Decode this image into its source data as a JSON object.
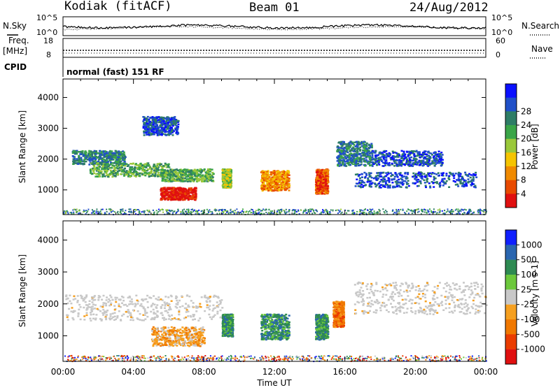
{
  "header": {
    "station": "Kodiak (fitACF)",
    "beam": "Beam 01",
    "date": "24/Aug/2012"
  },
  "status_panels": {
    "nsky_label": "N.Sky",
    "nsearch_label": "N.Search",
    "noise_ticks": [
      "10^5",
      "10^0"
    ],
    "freq_label_top": "Freq.",
    "freq_label_unit": "[MHz]",
    "freq_ticks": [
      "18",
      "8"
    ],
    "nave_label": "Nave",
    "nave_ticks": [
      "60",
      "0"
    ],
    "cpid_label": "CPID",
    "cpid_text": "normal (fast) 151 RF"
  },
  "chart_data": [
    {
      "type": "heatmap",
      "name": "power",
      "ylabel": "Slant Range [km]",
      "xlabel": "",
      "ylim": [
        200,
        4600
      ],
      "yticks": [
        "1000",
        "2000",
        "3000",
        "4000"
      ],
      "xticks": [
        "00:00",
        "04:00",
        "08:00",
        "12:00",
        "16:00",
        "20:00",
        "00:00"
      ],
      "colorbar": {
        "label": "Power [dB]",
        "ticks": [
          "4",
          "8",
          "12",
          "16",
          "20",
          "24",
          "28"
        ],
        "colors": [
          "#0a10ff",
          "#2050c8",
          "#2e7d66",
          "#3aa548",
          "#9ac83a",
          "#f5c400",
          "#f08a00",
          "#e84a00",
          "#e01010"
        ]
      },
      "features": [
        {
          "x": [
            0.5,
            3.5
          ],
          "y": [
            1850,
            2300
          ],
          "level": 2
        },
        {
          "x": [
            1.5,
            6.0
          ],
          "y": [
            1450,
            1900
          ],
          "level": 3
        },
        {
          "x": [
            5.5,
            8.5
          ],
          "y": [
            1300,
            1700
          ],
          "level": 3
        },
        {
          "x": [
            5.5,
            7.5
          ],
          "y": [
            700,
            1100
          ],
          "level": 8
        },
        {
          "x": [
            4.5,
            6.5
          ],
          "y": [
            2800,
            3400
          ],
          "level": 1
        },
        {
          "x": [
            9.0,
            9.5
          ],
          "y": [
            1100,
            1700
          ],
          "level": 4
        },
        {
          "x": [
            11.2,
            12.8
          ],
          "y": [
            1000,
            1650
          ],
          "level": 6
        },
        {
          "x": [
            14.3,
            15.0
          ],
          "y": [
            900,
            1700
          ],
          "level": 7
        },
        {
          "x": [
            15.5,
            17.5
          ],
          "y": [
            1800,
            2600
          ],
          "level": 2
        },
        {
          "x": [
            17.5,
            21.5
          ],
          "y": [
            1800,
            2300
          ],
          "level": 1
        },
        {
          "x": [
            16.5,
            23.5
          ],
          "y": [
            1100,
            1600
          ],
          "level": 1
        }
      ]
    },
    {
      "type": "heatmap",
      "name": "velocity",
      "ylabel": "Slant Range [km]",
      "xlabel": "Time UT",
      "ylim": [
        200,
        4600
      ],
      "yticks": [
        "1000",
        "2000",
        "3000",
        "4000"
      ],
      "xticks": [
        "00:00",
        "04:00",
        "08:00",
        "12:00",
        "16:00",
        "20:00",
        "00:00"
      ],
      "colorbar": {
        "label": "Velocity [m s-1]",
        "ticks": [
          "1000",
          "500",
          "100",
          "25",
          "-25",
          "-100",
          "-500",
          "-1000"
        ],
        "colors": [
          "#1020ff",
          "#2a66b0",
          "#2e8a52",
          "#6cc83c",
          "#c8c8c8",
          "#f6a020",
          "#f07800",
          "#ea3c00",
          "#e01010"
        ]
      },
      "features": [
        {
          "x": [
            0.0,
            9.0
          ],
          "y": [
            1500,
            2300
          ],
          "color": 4
        },
        {
          "x": [
            5.0,
            8.0
          ],
          "y": [
            700,
            1300
          ],
          "color": 5
        },
        {
          "x": [
            9.0,
            9.6
          ],
          "y": [
            1000,
            1700
          ],
          "color": 2
        },
        {
          "x": [
            11.2,
            12.8
          ],
          "y": [
            900,
            1700
          ],
          "color": 2
        },
        {
          "x": [
            14.3,
            15.0
          ],
          "y": [
            900,
            1700
          ],
          "color": 2
        },
        {
          "x": [
            15.3,
            15.9
          ],
          "y": [
            1300,
            2100
          ],
          "color": 6
        },
        {
          "x": [
            16.5,
            24.0
          ],
          "y": [
            1700,
            2700
          ],
          "color": 4
        }
      ]
    }
  ]
}
